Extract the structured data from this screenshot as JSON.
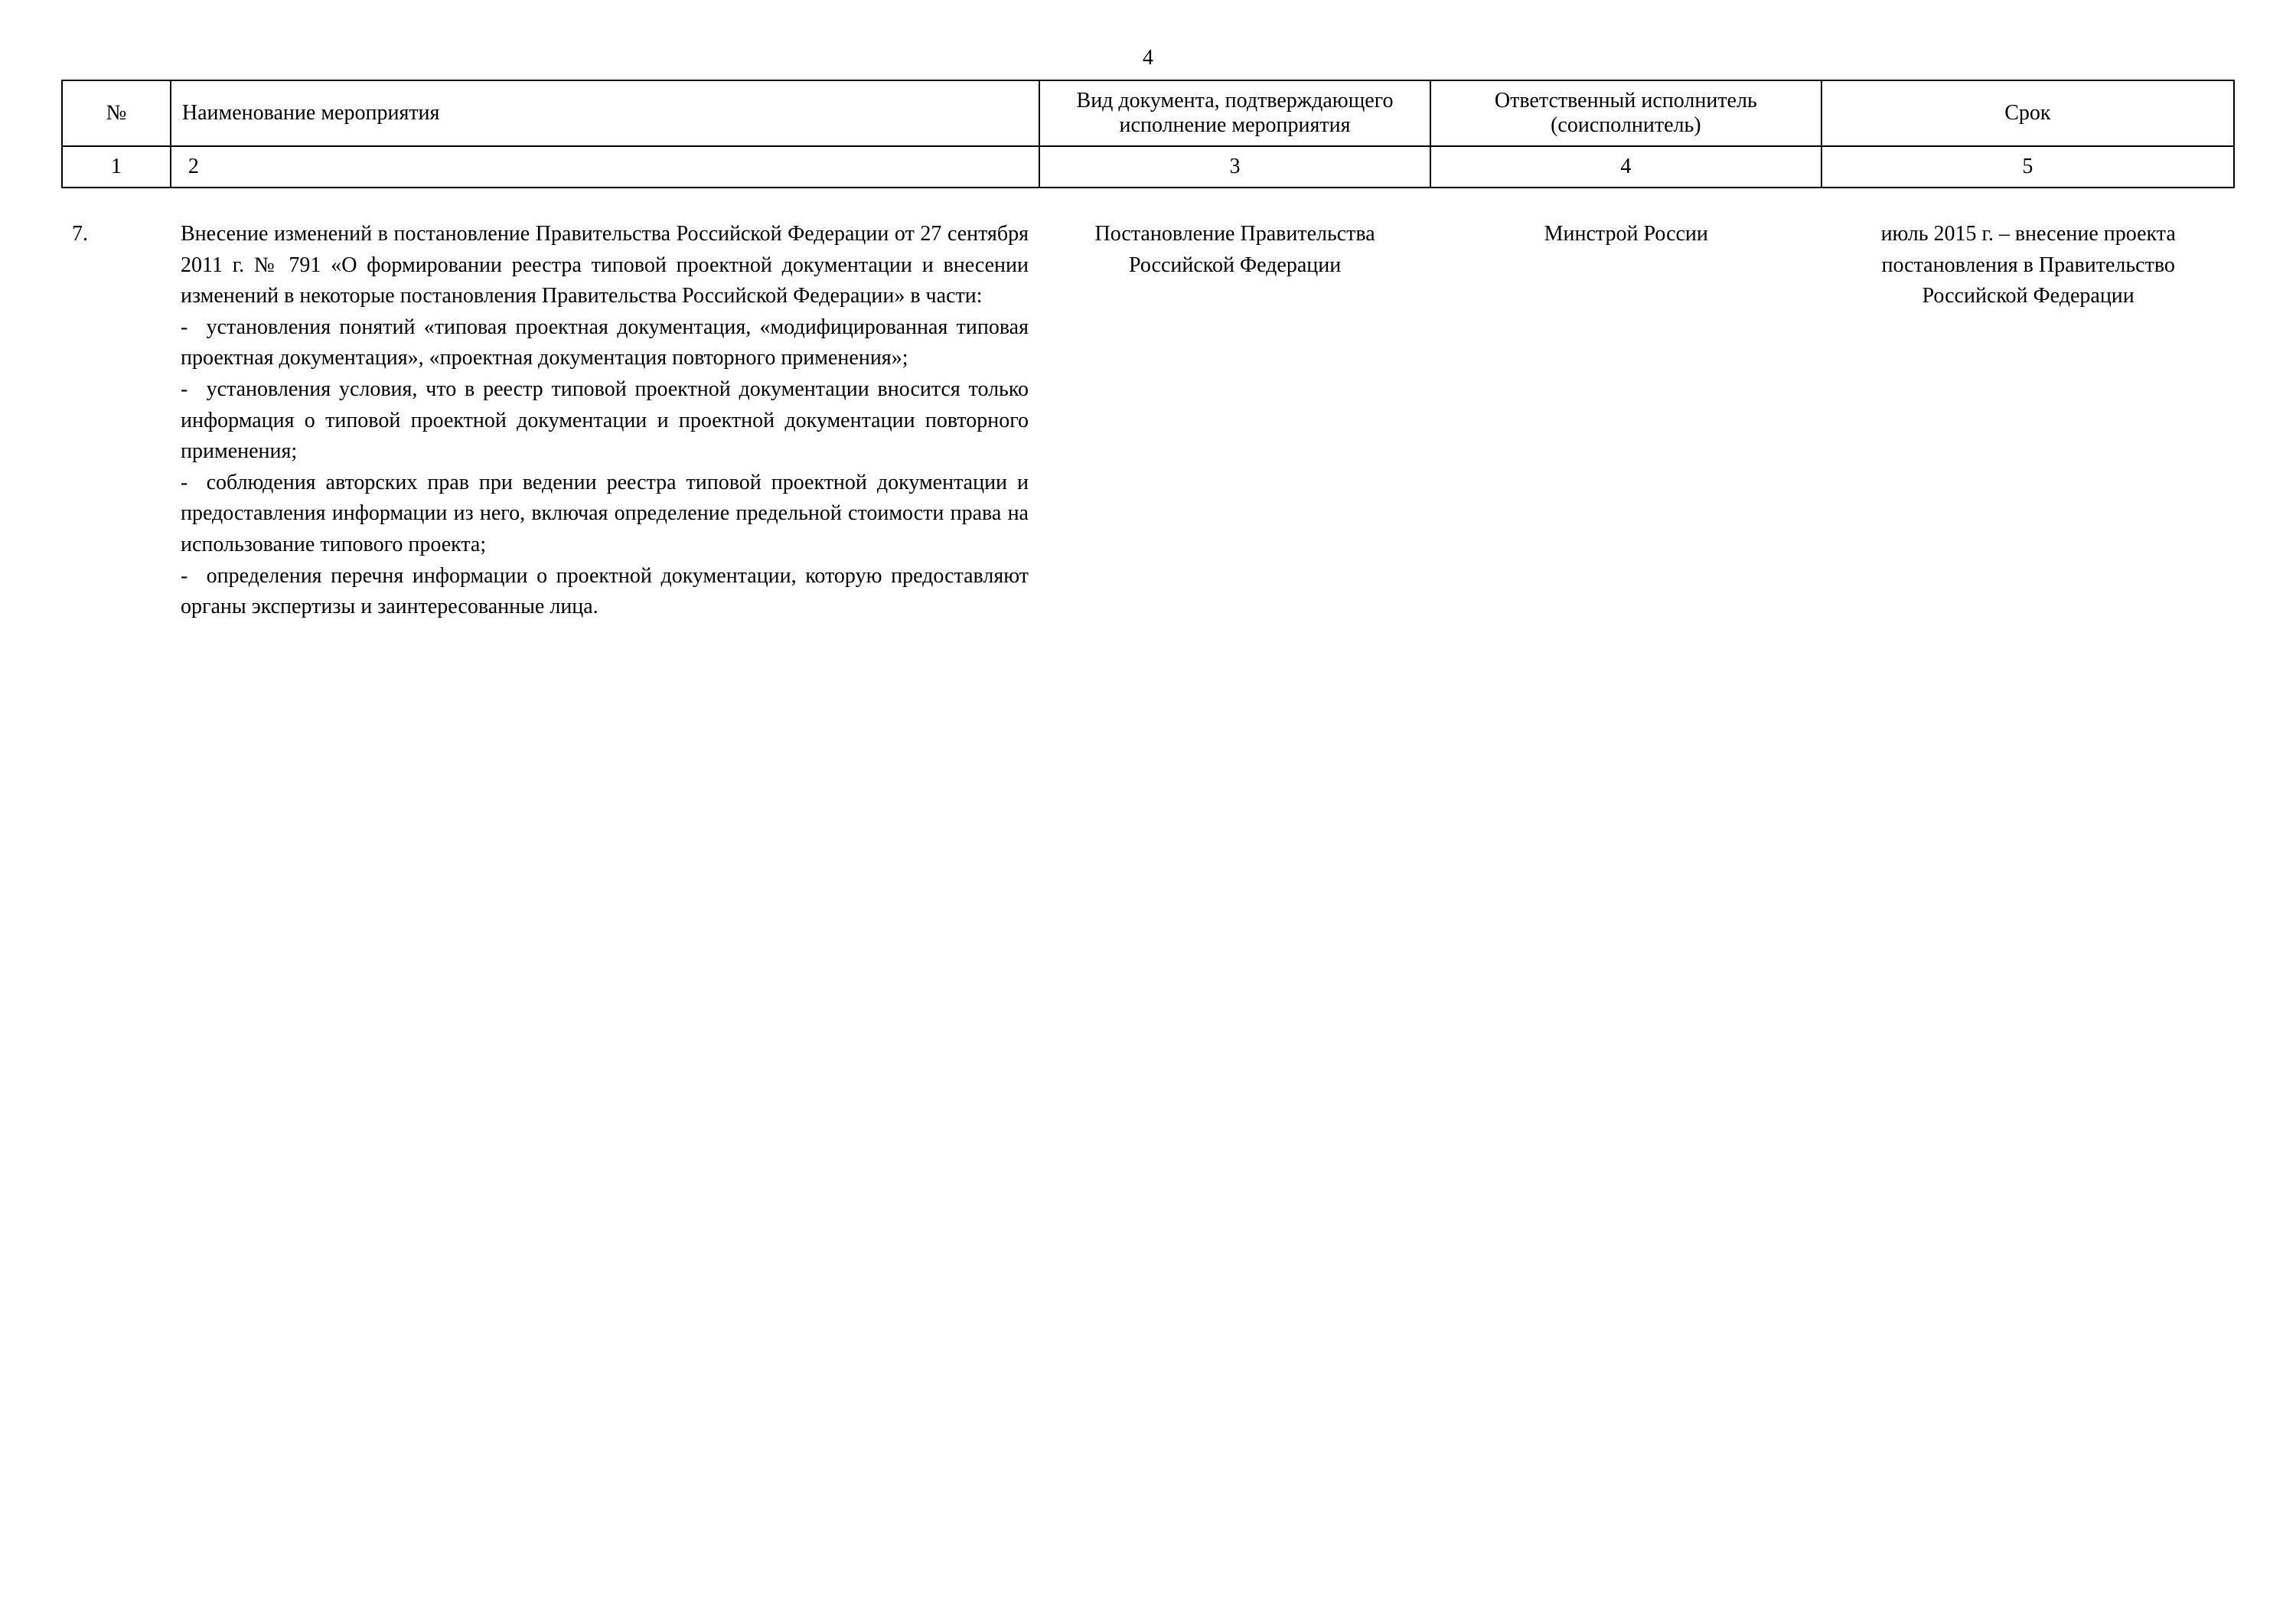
{
  "page_number": "4",
  "header": {
    "columns": {
      "num": "№",
      "name": "Наименование мероприятия",
      "doc": "Вид документа, подтверждающего исполнение мероприятия",
      "resp": "Ответственный исполнитель (соисполнитель)",
      "date": "Срок"
    },
    "col_numbers": {
      "num": "1",
      "name": "2",
      "doc": "3",
      "resp": "4",
      "date": "5"
    }
  },
  "row": {
    "num": "7.",
    "name_intro": "Внесение изменений в постановление Правительства Российской Федерации от 27 сентября 2011 г. № 791 «О формировании реестра типовой проектной документации и внесении изменений в некоторые постановления Правительства Российской Федерации» в части:",
    "bullets": [
      "установления понятий «типовая проектная документация, «модифицированная типовая проектная документация», «проектная документация повторного применения»;",
      "установления условия, что в реестр типовой проектной документации вносится только информация о типовой проектной документации и проектной документации повторного применения;",
      "соблюдения авторских прав при ведении реестра типовой проектной документации и предоставления информации из него, включая определение предельной стоимости права на использование типового проекта;",
      "определения перечня информации о проектной документации, которую предоставляют органы экспертизы и заинтересованные лица."
    ],
    "doc": "Постановление Правительства Российской Федерации",
    "resp": "Минстрой России",
    "date": "июль 2015 г. – внесение проекта постановления в Правительство Российской Федерации"
  },
  "styling": {
    "font_family": "Times New Roman",
    "font_size_pt": 14,
    "border_color": "#000000",
    "background_color": "#ffffff",
    "text_color": "#000000"
  }
}
